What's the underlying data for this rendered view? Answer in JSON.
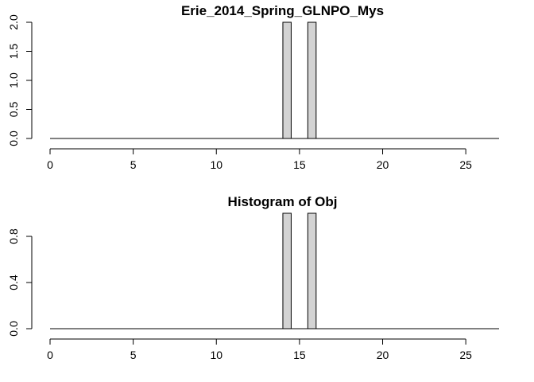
{
  "chart_data": [
    {
      "type": "bar",
      "title": "Erie_2014_Spring_GLNPO_Mys",
      "xlabel": "",
      "ylabel": "",
      "xlim": [
        0,
        27
      ],
      "ylim": [
        0,
        2
      ],
      "x_ticks": [
        0,
        5,
        10,
        15,
        20,
        25
      ],
      "y_ticks": [
        0.0,
        0.5,
        1.0,
        1.5,
        2.0
      ],
      "y_tick_labels": [
        "0.0",
        "0.5",
        "1.0",
        "1.5",
        "2.0"
      ],
      "bars": [
        {
          "x_start": 14.0,
          "x_end": 14.5,
          "value": 2
        },
        {
          "x_start": 15.5,
          "x_end": 16.0,
          "value": 2
        }
      ],
      "bar_fill": "#d3d3d3",
      "grid": false
    },
    {
      "type": "bar",
      "title": "Histogram of Obj",
      "xlabel": "",
      "ylabel": "",
      "xlim": [
        0,
        27
      ],
      "ylim": [
        0,
        1
      ],
      "x_ticks": [
        0,
        5,
        10,
        15,
        20,
        25
      ],
      "y_ticks": [
        0.0,
        0.4,
        0.8
      ],
      "y_tick_labels": [
        "0.0",
        "0.4",
        "0.8"
      ],
      "bars": [
        {
          "x_start": 14.0,
          "x_end": 14.5,
          "value": 1
        },
        {
          "x_start": 15.5,
          "x_end": 16.0,
          "value": 1
        }
      ],
      "bar_fill": "#d3d3d3",
      "grid": false
    }
  ]
}
